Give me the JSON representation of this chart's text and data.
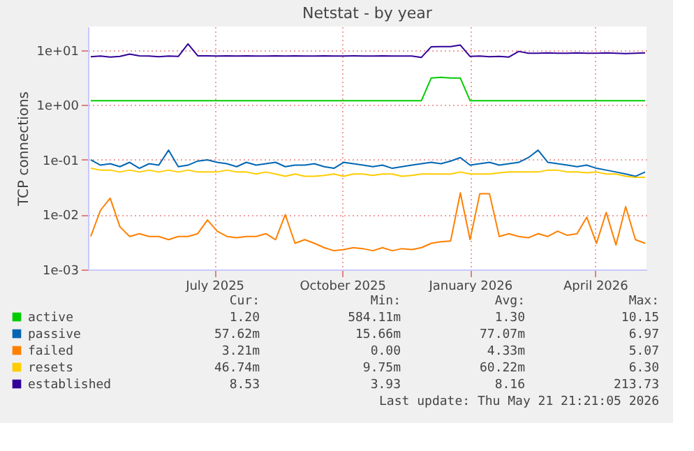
{
  "chart_data": {
    "type": "line",
    "title": "Netstat - by year",
    "ylabel": "TCP connections",
    "log": "y",
    "grid": true,
    "legend": "bottom",
    "ylim": [
      0.001,
      27
    ],
    "yticks": [
      {
        "value": 0.001,
        "label": "1e-03"
      },
      {
        "value": 0.01,
        "label": "1e-02"
      },
      {
        "value": 0.1,
        "label": "1e-01"
      },
      {
        "value": 1,
        "label": "1e+00"
      },
      {
        "value": 10,
        "label": "1e+01"
      }
    ],
    "xlim": [
      "2025-04-01",
      "2026-05-08"
    ],
    "xticks": [
      {
        "value": "2025-07-01",
        "label": "July 2025"
      },
      {
        "value": "2025-10-01",
        "label": "October 2025"
      },
      {
        "value": "2026-01-01",
        "label": "January 2026"
      },
      {
        "value": "2026-04-01",
        "label": "April 2026"
      }
    ],
    "x": [
      "2025-04-03",
      "2025-04-10",
      "2025-04-17",
      "2025-04-24",
      "2025-05-01",
      "2025-05-08",
      "2025-05-15",
      "2025-05-22",
      "2025-05-29",
      "2025-06-05",
      "2025-06-12",
      "2025-06-19",
      "2025-06-26",
      "2025-07-03",
      "2025-07-10",
      "2025-07-17",
      "2025-07-24",
      "2025-07-31",
      "2025-08-07",
      "2025-08-14",
      "2025-08-21",
      "2025-08-28",
      "2025-09-04",
      "2025-09-11",
      "2025-09-18",
      "2025-09-25",
      "2025-10-02",
      "2025-10-09",
      "2025-10-16",
      "2025-10-23",
      "2025-10-30",
      "2025-11-06",
      "2025-11-13",
      "2025-11-20",
      "2025-11-27",
      "2025-12-04",
      "2025-12-11",
      "2025-12-18",
      "2025-12-25",
      "2026-01-01",
      "2026-01-08",
      "2026-01-15",
      "2026-01-22",
      "2026-01-29",
      "2026-02-05",
      "2026-02-12",
      "2026-02-19",
      "2026-02-26",
      "2026-03-05",
      "2026-03-12",
      "2026-03-19",
      "2026-03-26",
      "2026-04-02",
      "2026-04-09",
      "2026-04-16",
      "2026-04-23",
      "2026-04-30",
      "2026-05-07"
    ],
    "series": [
      {
        "name": "active",
        "color": "#00cc00",
        "values": [
          1.2,
          1.2,
          1.2,
          1.2,
          1.2,
          1.2,
          1.2,
          1.2,
          1.2,
          1.2,
          1.2,
          1.2,
          1.2,
          1.2,
          1.2,
          1.2,
          1.2,
          1.2,
          1.2,
          1.2,
          1.2,
          1.2,
          1.2,
          1.2,
          1.2,
          1.2,
          1.2,
          1.2,
          1.2,
          1.2,
          1.2,
          1.2,
          1.2,
          1.2,
          1.2,
          3.1,
          3.2,
          3.1,
          3.1,
          1.2,
          1.2,
          1.2,
          1.2,
          1.2,
          1.2,
          1.2,
          1.2,
          1.2,
          1.2,
          1.2,
          1.2,
          1.2,
          1.2,
          1.2,
          1.2,
          1.2,
          1.2,
          1.2
        ]
      },
      {
        "name": "passive",
        "color": "#0066b3",
        "values": [
          0.1,
          0.08,
          0.085,
          0.075,
          0.09,
          0.07,
          0.085,
          0.08,
          0.15,
          0.075,
          0.08,
          0.095,
          0.1,
          0.09,
          0.085,
          0.075,
          0.09,
          0.08,
          0.085,
          0.09,
          0.075,
          0.08,
          0.08,
          0.085,
          0.075,
          0.07,
          0.09,
          0.085,
          0.08,
          0.075,
          0.08,
          0.07,
          0.075,
          0.08,
          0.085,
          0.09,
          0.085,
          0.095,
          0.11,
          0.08,
          0.085,
          0.09,
          0.08,
          0.085,
          0.09,
          0.11,
          0.15,
          0.09,
          0.085,
          0.08,
          0.075,
          0.08,
          0.07,
          0.065,
          0.06,
          0.055,
          0.05,
          0.06
        ]
      },
      {
        "name": "failed",
        "color": "#ff8000",
        "values": [
          0.004,
          0.012,
          0.02,
          0.006,
          0.004,
          0.0045,
          0.004,
          0.004,
          0.0035,
          0.004,
          0.004,
          0.0045,
          0.008,
          0.005,
          0.004,
          0.0038,
          0.004,
          0.004,
          0.0045,
          0.0035,
          0.01,
          0.003,
          0.0035,
          0.003,
          0.0025,
          0.0022,
          0.0023,
          0.0025,
          0.0024,
          0.0022,
          0.0025,
          0.0022,
          0.0024,
          0.0023,
          0.0025,
          0.003,
          0.0032,
          0.0033,
          0.025,
          0.0035,
          0.024,
          0.024,
          0.004,
          0.0045,
          0.004,
          0.0038,
          0.0045,
          0.004,
          0.005,
          0.0042,
          0.0045,
          0.009,
          0.003,
          0.011,
          0.0028,
          0.014,
          0.0035,
          0.003
        ]
      },
      {
        "name": "resets",
        "color": "#ffcc00",
        "values": [
          0.07,
          0.065,
          0.065,
          0.06,
          0.065,
          0.06,
          0.065,
          0.06,
          0.065,
          0.06,
          0.065,
          0.06,
          0.06,
          0.06,
          0.065,
          0.06,
          0.06,
          0.055,
          0.06,
          0.055,
          0.05,
          0.055,
          0.05,
          0.05,
          0.052,
          0.055,
          0.05,
          0.055,
          0.055,
          0.052,
          0.055,
          0.055,
          0.05,
          0.052,
          0.055,
          0.055,
          0.055,
          0.055,
          0.06,
          0.055,
          0.055,
          0.055,
          0.058,
          0.06,
          0.06,
          0.06,
          0.06,
          0.065,
          0.065,
          0.06,
          0.06,
          0.058,
          0.06,
          0.055,
          0.055,
          0.05,
          0.048,
          0.048
        ]
      },
      {
        "name": "established",
        "color": "#330099",
        "values": [
          7.6,
          7.8,
          7.5,
          7.7,
          8.5,
          7.9,
          7.8,
          7.6,
          7.8,
          7.7,
          13.0,
          7.9,
          7.9,
          7.8,
          7.9,
          7.8,
          7.9,
          7.8,
          7.8,
          7.9,
          7.8,
          7.9,
          7.8,
          7.8,
          7.9,
          7.8,
          7.8,
          7.9,
          7.8,
          7.8,
          7.9,
          7.8,
          7.8,
          7.8,
          7.4,
          11.5,
          11.6,
          11.6,
          12.4,
          7.7,
          7.8,
          7.6,
          7.7,
          7.5,
          9.5,
          8.8,
          8.8,
          8.9,
          8.8,
          8.8,
          8.9,
          8.8,
          8.8,
          8.9,
          8.8,
          8.7,
          8.8,
          8.9
        ]
      }
    ],
    "annotations": [
      "Cur:",
      "Min:",
      "Avg:",
      "Max:",
      "1.20",
      "584.11m",
      "1.30",
      "10.15",
      "57.62m",
      "15.66m",
      "77.07m",
      "6.97",
      "3.21m",
      "0.00",
      "4.33m",
      "5.07",
      "46.74m",
      "9.75m",
      "60.22m",
      "6.30",
      "8.53",
      "3.93",
      "8.16",
      "213.73",
      "Last update: Thu May 21 21:21:05 2026"
    ]
  }
}
